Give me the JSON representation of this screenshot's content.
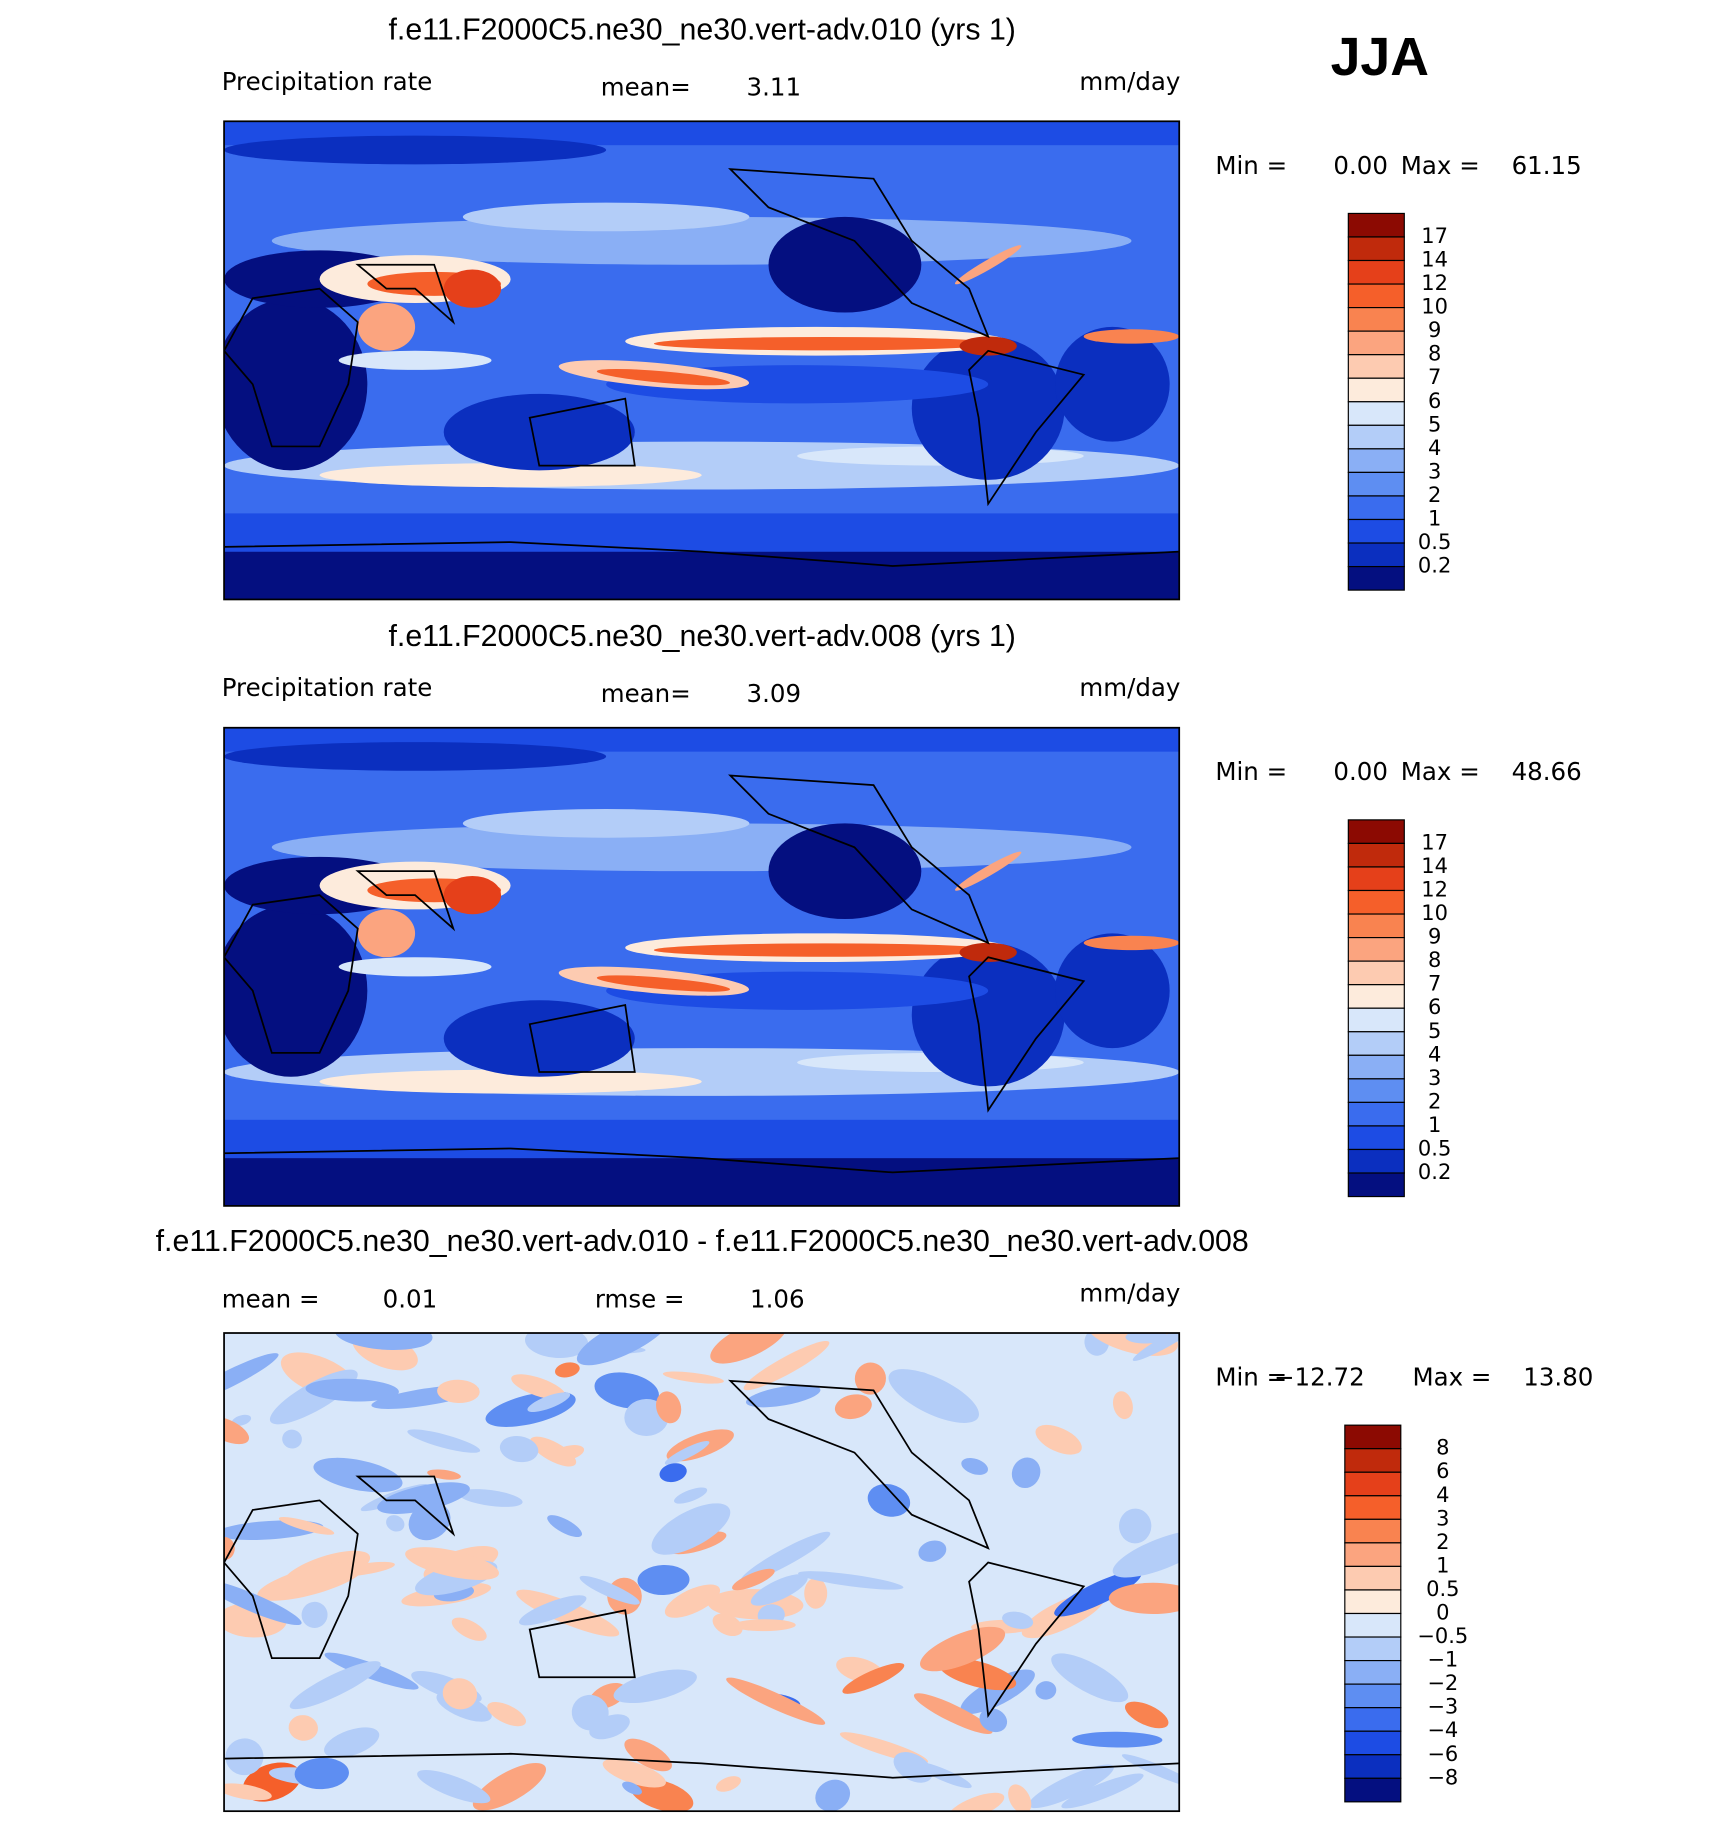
{
  "header": {
    "season": "JJA"
  },
  "panels": [
    {
      "title": "f.e11.F2000C5.ne30_ne30.vert-adv.010 (yrs 1)",
      "variable": "Precipitation rate",
      "stats": [
        {
          "label": "mean=",
          "value": "3.11"
        }
      ],
      "units": "mm/day",
      "min_label": "Min =",
      "min_value": "0.00",
      "max_label": "Max =",
      "max_value": "61.15",
      "map": "field",
      "colorbar": {
        "labels": [
          "17",
          "14",
          "12",
          "10",
          "9",
          "8",
          "7",
          "6",
          "5",
          "4",
          "3",
          "2",
          "1",
          "0.5",
          "0.2"
        ],
        "colors": [
          "#8c0a02",
          "#c02a0c",
          "#e5401a",
          "#f55f2a",
          "#f98350",
          "#fba47f",
          "#fdcbb1",
          "#fdebdc",
          "#d8e7fa",
          "#b3cdf8",
          "#8aaff5",
          "#5e8ef2",
          "#3a6cee",
          "#1d4ce4",
          "#0b2fbf",
          "#040f80"
        ]
      }
    },
    {
      "title": "f.e11.F2000C5.ne30_ne30.vert-adv.008 (yrs 1)",
      "variable": "Precipitation rate",
      "stats": [
        {
          "label": "mean=",
          "value": "3.09"
        }
      ],
      "units": "mm/day",
      "min_label": "Min =",
      "min_value": "0.00",
      "max_label": "Max =",
      "max_value": "48.66",
      "map": "field",
      "colorbar": {
        "labels": [
          "17",
          "14",
          "12",
          "10",
          "9",
          "8",
          "7",
          "6",
          "5",
          "4",
          "3",
          "2",
          "1",
          "0.5",
          "0.2"
        ],
        "colors": [
          "#8c0a02",
          "#c02a0c",
          "#e5401a",
          "#f55f2a",
          "#f98350",
          "#fba47f",
          "#fdcbb1",
          "#fdebdc",
          "#d8e7fa",
          "#b3cdf8",
          "#8aaff5",
          "#5e8ef2",
          "#3a6cee",
          "#1d4ce4",
          "#0b2fbf",
          "#040f80"
        ]
      }
    },
    {
      "title": "f.e11.F2000C5.ne30_ne30.vert-adv.010 - f.e11.F2000C5.ne30_ne30.vert-adv.008",
      "stats": [
        {
          "label": "mean =",
          "value": "0.01"
        },
        {
          "label": "rmse =",
          "value": "1.06"
        }
      ],
      "units": "mm/day",
      "min_label": "Min =",
      "min_value": "−12.72",
      "max_label": "Max =",
      "max_value": "13.80",
      "map": "difference",
      "colorbar": {
        "labels": [
          "8",
          "6",
          "4",
          "3",
          "2",
          "1",
          "0.5",
          "0",
          "−0.5",
          "−1",
          "−2",
          "−3",
          "−4",
          "−6",
          "−8"
        ],
        "colors": [
          "#8c0a02",
          "#c02a0c",
          "#e5401a",
          "#f55f2a",
          "#f98350",
          "#fba47f",
          "#fdcbb1",
          "#fdebdc",
          "#d8e7fa",
          "#b3cdf8",
          "#8aaff5",
          "#5e8ef2",
          "#3a6cee",
          "#1d4ce4",
          "#0b2fbf",
          "#040f80"
        ]
      }
    }
  ]
}
